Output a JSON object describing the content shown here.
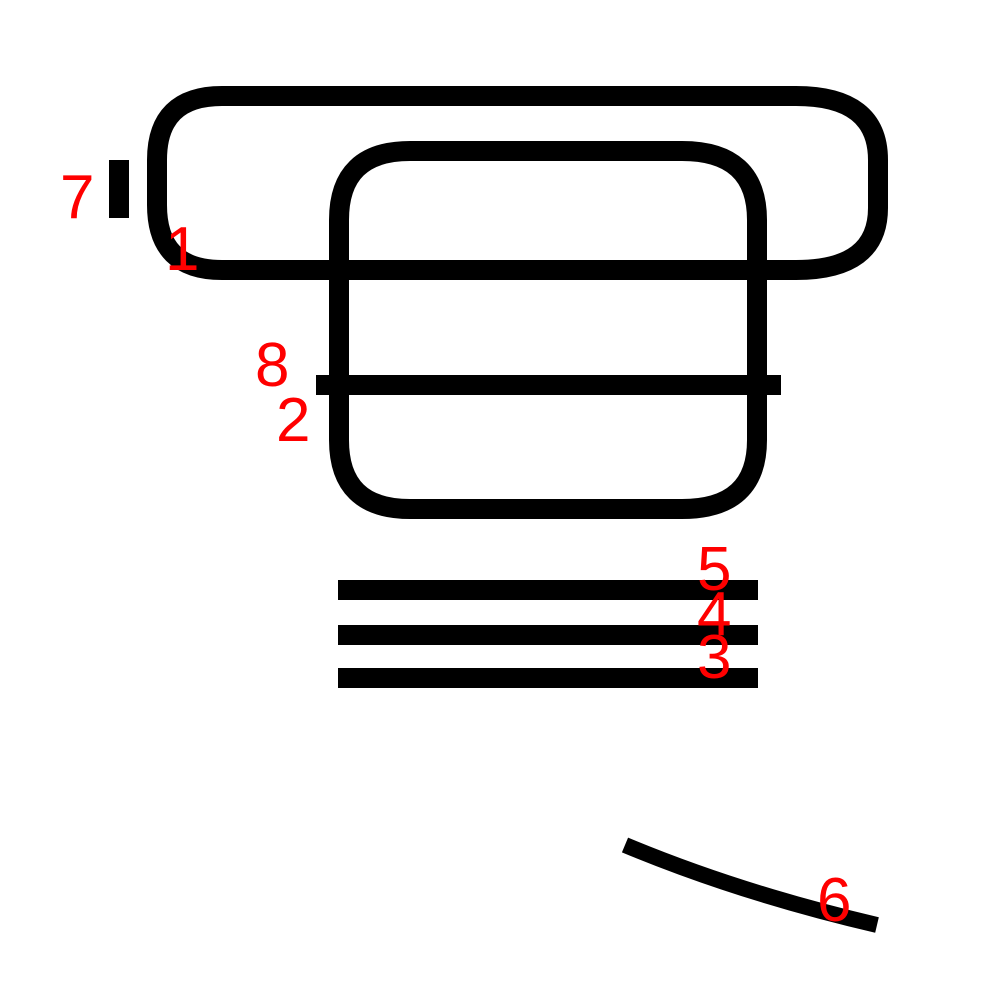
{
  "colors": {
    "stroke": "#000000",
    "label": "#ff0000",
    "background": "#ffffff"
  },
  "labels": {
    "l1": "1",
    "l2": "2",
    "l3": "3",
    "l4": "4",
    "l5": "5",
    "l6": "6",
    "l7": "7",
    "l8": "8"
  }
}
